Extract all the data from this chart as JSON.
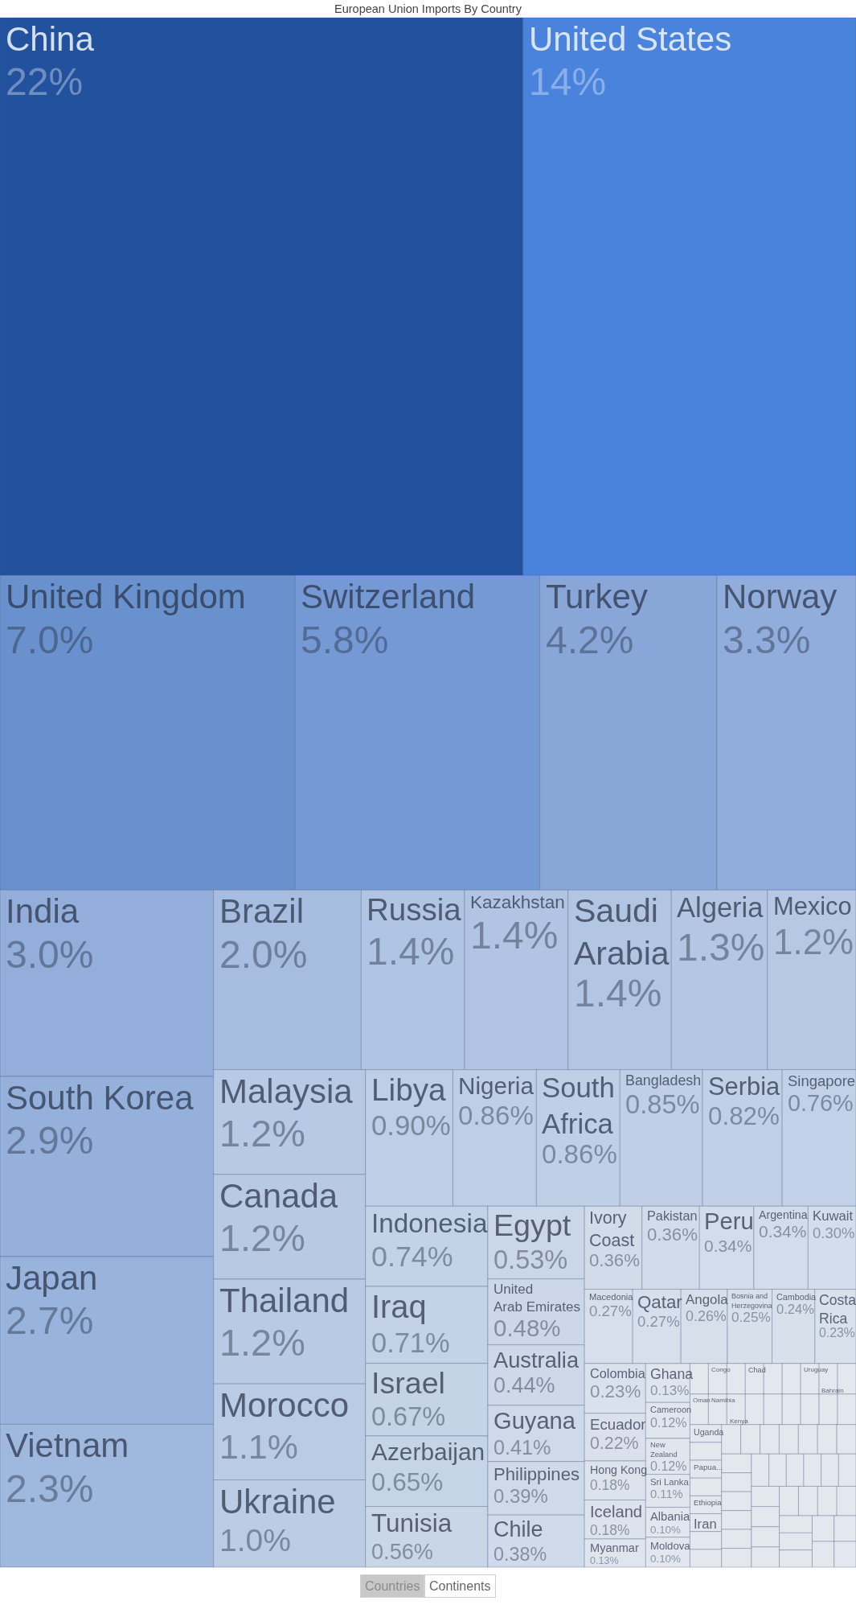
{
  "chart_data": {
    "type": "other",
    "title": "European Union Imports By Country",
    "categories": [
      "China",
      "United States",
      "United Kingdom",
      "Switzerland",
      "Turkey",
      "Norway",
      "India",
      "South Korea",
      "Japan",
      "Vietnam",
      "Brazil",
      "Russia",
      "Kazakhstan",
      "Saudi Arabia",
      "Algeria",
      "Mexico",
      "Malaysia",
      "Canada",
      "Thailand",
      "Morocco",
      "Ukraine",
      "Libya",
      "Nigeria",
      "South Africa",
      "Bangladesh",
      "Serbia",
      "Singapore",
      "Indonesia",
      "Iraq",
      "Israel",
      "Azerbaijan",
      "Tunisia",
      "Egypt",
      "United Arab Emirates",
      "Australia",
      "Guyana",
      "Philippines",
      "Chile",
      "Ivory Coast",
      "Pakistan",
      "Peru",
      "Argentina",
      "Kuwait",
      "Macedonia",
      "Qatar",
      "Angola",
      "Bosnia and Herzegovina",
      "Cambodia",
      "Costa Rica",
      "Colombia",
      "Ecuador",
      "Hong Kong",
      "Iceland",
      "Myanmar",
      "Ghana",
      "Cameroon",
      "New Zealand",
      "Sri Lanka",
      "Albania",
      "Moldova",
      null,
      "Congo",
      null,
      "Chad",
      null,
      null,
      "Uruguay",
      "Bahrain",
      null,
      "Oman",
      "Namibia",
      "Kenya",
      null,
      null,
      null,
      null,
      null,
      null,
      "Uganda",
      null,
      "Papua...",
      null,
      "Ethiopia",
      "Iran",
      null,
      null,
      null,
      null,
      null,
      null,
      null,
      null,
      null,
      null,
      null,
      null,
      null,
      null,
      null,
      null,
      null,
      null,
      null,
      null,
      null,
      null,
      null,
      null,
      null,
      null,
      null,
      null,
      null,
      null,
      null,
      null,
      null,
      null,
      null,
      null
    ],
    "values": [
      22,
      14,
      7.0,
      5.8,
      4.2,
      3.3,
      3.0,
      2.9,
      2.7,
      2.3,
      2.0,
      1.4,
      1.4,
      1.4,
      1.3,
      1.2,
      1.2,
      1.2,
      1.2,
      1.1,
      1.0,
      0.9,
      0.86,
      0.86,
      0.85,
      0.82,
      0.76,
      0.74,
      0.71,
      0.67,
      0.65,
      0.56,
      0.53,
      0.48,
      0.44,
      0.41,
      0.39,
      0.38,
      0.36,
      0.36,
      0.34,
      0.34,
      0.3,
      0.27,
      0.27,
      0.26,
      0.25,
      0.24,
      0.23,
      0.23,
      0.22,
      0.18,
      0.18,
      0.13,
      0.13,
      0.12,
      0.12,
      0.11,
      0.1,
      0.1,
      null,
      null,
      null,
      null,
      null,
      null,
      null,
      null,
      null,
      null,
      null,
      null,
      null,
      null,
      null,
      null,
      null,
      null,
      null,
      null,
      null,
      null,
      null,
      null,
      null,
      null,
      null,
      null,
      null,
      null,
      null,
      null,
      null,
      null,
      null,
      null,
      null,
      null,
      null,
      null,
      null,
      null,
      null,
      null,
      null,
      null,
      null,
      null,
      null,
      null,
      null,
      null,
      null,
      null,
      null,
      null,
      null,
      null,
      null,
      null
    ],
    "value_labels": [
      "22%",
      "14%",
      "7.0%",
      "5.8%",
      "4.2%",
      "3.3%",
      "3.0%",
      "2.9%",
      "2.7%",
      "2.3%",
      "2.0%",
      "1.4%",
      "1.4%",
      "1.4%",
      "1.3%",
      "1.2%",
      "1.2%",
      "1.2%",
      "1.2%",
      "1.1%",
      "1.0%",
      "0.90%",
      "0.86%",
      "0.86%",
      "0.85%",
      "0.82%",
      "0.76%",
      "0.74%",
      "0.71%",
      "0.67%",
      "0.65%",
      "0.56%",
      "0.53%",
      "0.48%",
      "0.44%",
      "0.41%",
      "0.39%",
      "0.38%",
      "0.36%",
      "0.36%",
      "0.34%",
      "0.34%",
      "0.30%",
      "0.27%",
      "0.27%",
      "0.26%",
      "0.25%",
      "0.24%",
      "0.23%",
      "0.23%",
      "0.22%",
      "0.18%",
      "0.18%",
      "0.13%",
      "0.13%",
      "0.12%",
      "0.12%",
      "0.11%",
      "0.10%",
      "0.10%",
      null,
      null,
      null,
      null,
      null,
      null,
      null,
      null,
      null,
      null,
      null,
      null,
      null,
      null,
      null,
      null,
      null,
      null,
      null,
      null,
      null,
      null,
      null,
      null,
      null,
      null,
      null,
      null,
      null,
      null,
      null,
      null,
      null,
      null,
      null,
      null,
      null,
      null,
      null,
      null,
      null,
      null,
      null,
      null,
      null,
      null,
      null,
      null,
      null,
      null,
      null,
      null,
      null,
      null,
      null,
      null,
      null,
      null,
      null,
      null
    ],
    "colors": [
      "#22519d",
      "#4a83dc",
      "#6991cd",
      "#7599d5",
      "#88a7d8",
      "#91addb",
      "#93aedb",
      "#95b0db",
      "#98b3dc",
      "#9fb8de",
      "#a6bde0",
      "#b0c4e3",
      "#b1c4e3",
      "#b2c5e3",
      "#b4c6e3",
      "#b6c8e4",
      "#b7c9e4",
      "#b8c9e4",
      "#b8cae4",
      "#bacbe5",
      "#bccce5",
      "#becee6",
      "#bfcee6",
      "#bfcfe6",
      "#c0cfe6",
      "#c1d0e6",
      "#c2d1e7",
      "#c3d2e7",
      "#c4d2e7",
      "#c5d3e7",
      "#c6d4e8",
      "#c9d6e8",
      "#cad7e8",
      "#ccd8e9",
      "#cdd9e9",
      "#ced9e9",
      "#cfdae9",
      "#cfdaea",
      "#d1dbea",
      "#d1dbea",
      "#d2dcea",
      "#d2dcea",
      "#d4ddeb",
      "#d6dfeb",
      "#d6dfeb",
      "#d7dfeb",
      "#d7e0eb",
      "#d8e0eb",
      "#d9e1ec",
      "#d9e1ec",
      "#dae1ec",
      "#dce3ed",
      "#dce3ed",
      "#dfe5ee",
      "#dfe5ee",
      "#e0e5ee",
      "#e0e5ee",
      "#e1e6ee",
      "#e1e6ef",
      "#e1e6ef",
      "#e3e8ef",
      "#e3e8ef",
      "#e3e8ef",
      "#e3e8ef",
      "#e3e8ef",
      "#e3e8ef",
      "#e3e8ef",
      "#e3e8ef",
      "#e3e8ef",
      "#e3e8ef",
      "#e3e8ef",
      "#e3e8ef",
      "#e3e8ef",
      "#e3e8ef",
      "#e3e8ef",
      "#e3e8ef",
      "#e3e8ef",
      "#e3e8ef",
      "#e3e8ef",
      "#e3e8ef",
      "#e3e8ef",
      "#e3e8ef",
      "#e3e8ef",
      "#e3e8ef",
      "#e3e8ef",
      "#e3e8ef",
      "#e3e8ef",
      "#e3e8ef",
      "#e3e8ef",
      "#e3e8ef",
      "#e3e8ef",
      "#e3e8ef",
      "#e3e8ef",
      "#e3e8ef",
      "#e3e8ef",
      "#e3e8ef",
      "#e3e8ef",
      "#e3e8ef",
      "#e3e8ef",
      "#e3e8ef",
      "#e3e8ef",
      "#e3e8ef",
      "#e3e8ef",
      "#e3e8ef",
      "#e3e8ef",
      "#e3e8ef",
      "#e3e8ef",
      "#e3e8ef",
      "#e3e8ef",
      "#e3e8ef",
      "#e3e8ef",
      "#e3e8ef",
      "#e3e8ef",
      "#e3e8ef",
      "#e3e8ef",
      "#e3e8ef",
      "#e3e8ef",
      "#e3e8ef",
      "#e3e8ef",
      "#e3e8ef"
    ],
    "annotations": [
      "Countries",
      "Continents"
    ]
  }
}
